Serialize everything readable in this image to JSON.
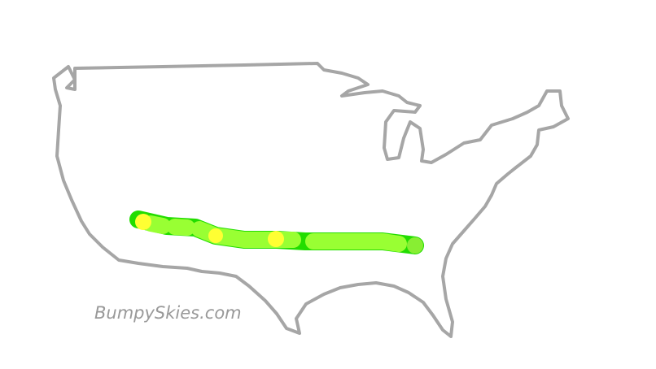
{
  "watermark": "BumpySkies.com"
}
